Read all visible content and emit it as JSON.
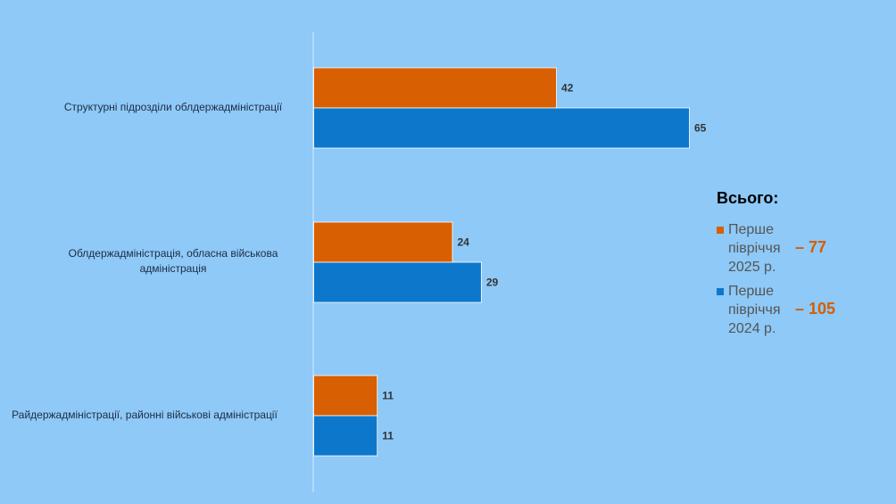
{
  "chart_data": {
    "type": "bar",
    "orientation": "horizontal",
    "categories": [
      "Структурні підрозділи облдержадміністрації",
      "Облдержадміністрація, обласна військова адміністрація",
      "Райдержадміністрації, районні військові адміністрації"
    ],
    "series": [
      {
        "name": "Перше півріччя 2025 р.",
        "values": [
          42,
          24,
          11
        ],
        "color": "#d85f02"
      },
      {
        "name": "Перше півріччя 2024 р.",
        "values": [
          65,
          29,
          11
        ],
        "color": "#0d78cb"
      }
    ],
    "xlim": [
      0,
      65
    ],
    "grid": false,
    "data_labels": true,
    "legend_position": "right"
  },
  "legend": {
    "title": "Всього:",
    "items": [
      {
        "label": "Перше півріччя 2025 р.",
        "total": "– 77",
        "color": "#d85f02"
      },
      {
        "label": "Перше півріччя 2024 р.",
        "total": "– 105",
        "color": "#0d78cb"
      }
    ]
  },
  "colors": {
    "background": "#8ec9f7",
    "axis": "#d8ecfb",
    "label_text": "#1c2c44",
    "legend_total": "#d55e00"
  }
}
